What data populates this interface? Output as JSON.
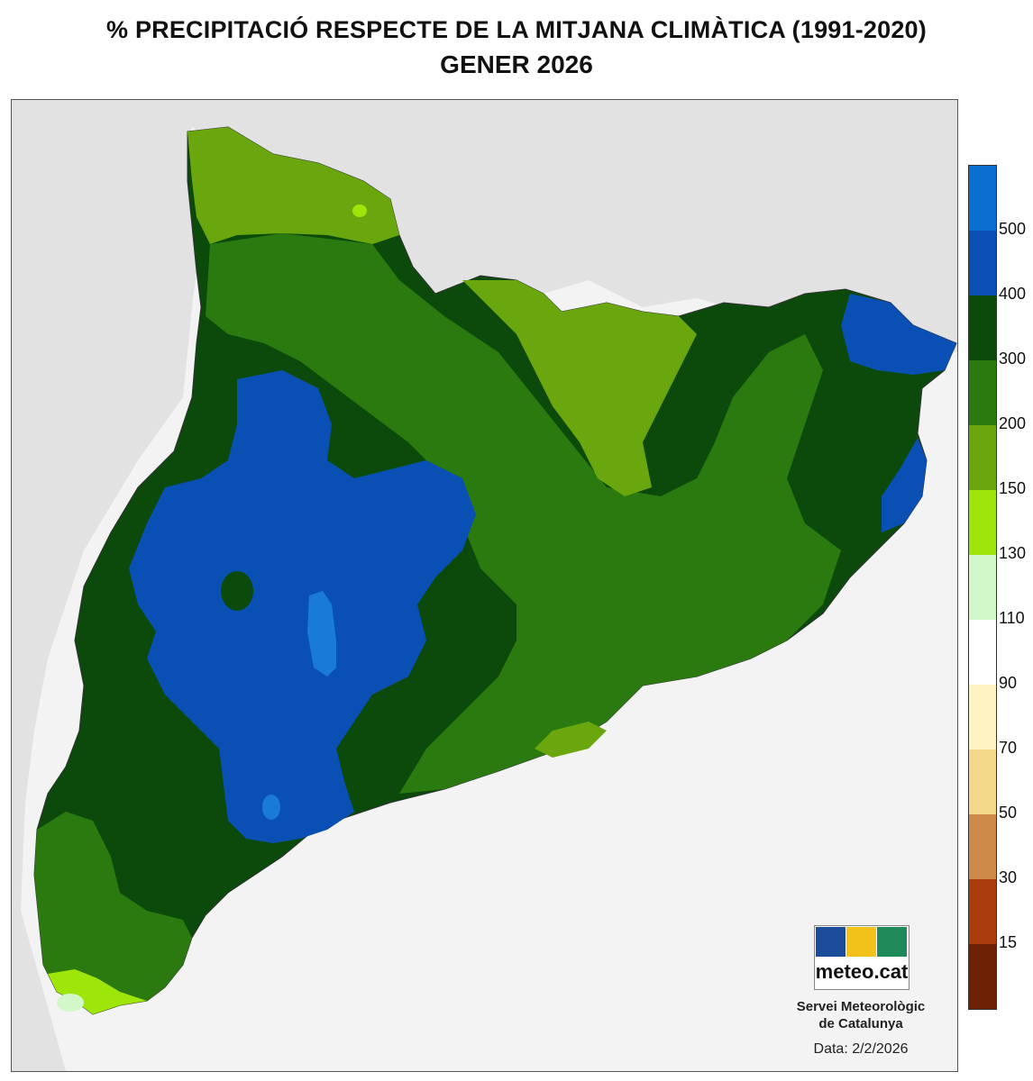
{
  "title_line1": "% PRECIPITACIÓ RESPECTE DE LA MITJANA CLIMÀTICA (1991-2020)",
  "title_line2": "GENER 2026",
  "legend": {
    "bins": [
      {
        "color": "#0a6fd0"
      },
      {
        "color": "#0a4fb4"
      },
      {
        "color": "#0b4a0b"
      },
      {
        "color": "#2a7a10"
      },
      {
        "color": "#6aa70e"
      },
      {
        "color": "#9ee60a"
      },
      {
        "color": "#d2f7c8"
      },
      {
        "color": "#ffffff"
      },
      {
        "color": "#fff3c4"
      },
      {
        "color": "#f4d88a"
      },
      {
        "color": "#cd8a48"
      },
      {
        "color": "#ab3c0c"
      },
      {
        "color": "#6e2205"
      }
    ],
    "ticks": [
      "500",
      "400",
      "300",
      "200",
      "150",
      "130",
      "110",
      "90",
      "70",
      "50",
      "30",
      "15"
    ]
  },
  "logo": {
    "text": "meteo.cat",
    "colors": [
      "#1a4c9a",
      "#f2c21b",
      "#1e8a5a"
    ]
  },
  "organization_line1": "Servei Meteorològic",
  "organization_line2": "de Catalunya",
  "date_label": "Data: 2/2/2026",
  "map_colors": {
    "sea": "#f3f3f3",
    "land_bg": "#e2e2e2",
    "lt_blue": "#1a7bd6",
    "blue": "#0a50b4",
    "dk_green": "#0b4a0b",
    "green": "#2a7a10",
    "ol_green": "#6aa70e",
    "lime": "#9ee60a",
    "pale": "#d2f7c8"
  }
}
